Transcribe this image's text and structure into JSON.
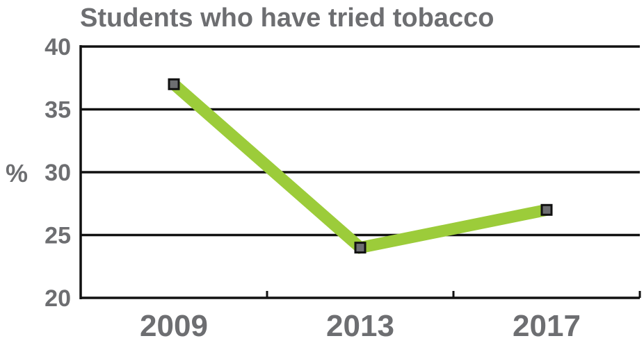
{
  "chart_data": {
    "type": "line",
    "title": "Students who have tried tobacco",
    "ylabel": "%",
    "xlabel": "",
    "categories": [
      "2009",
      "2013",
      "2017"
    ],
    "series": [
      {
        "values": [
          37,
          24,
          27
        ],
        "color": "#9ccc3a"
      }
    ],
    "ylim": [
      20,
      40
    ],
    "yticks": [
      "20",
      "25",
      "30",
      "35",
      "40"
    ],
    "grid": true,
    "legend": "none",
    "marker_fill": "#6d6e71",
    "marker_stroke": "#111111",
    "axis_color": "#111111",
    "text_color": "#6d6e71"
  }
}
